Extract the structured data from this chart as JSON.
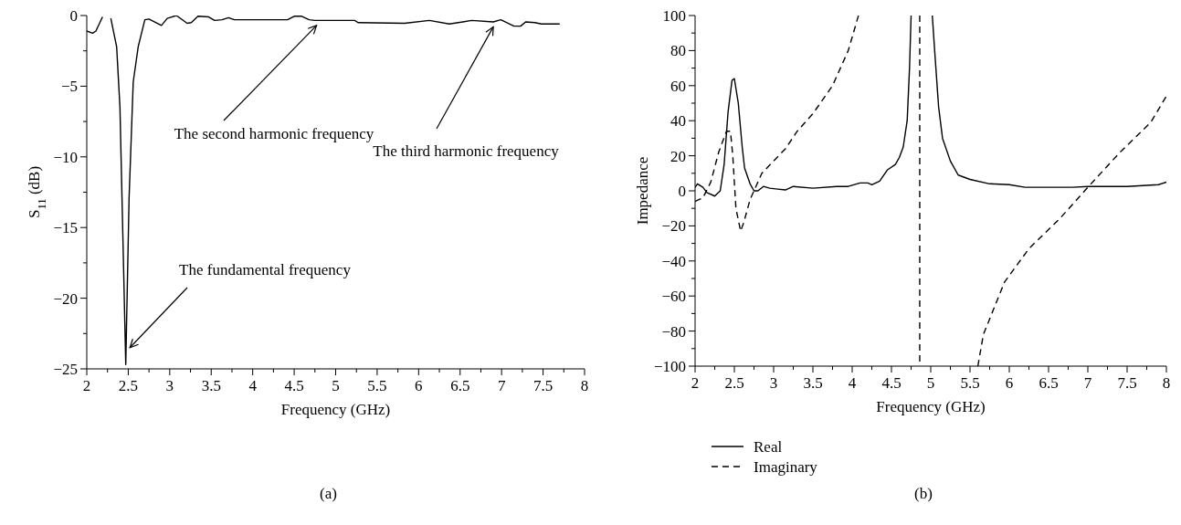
{
  "chart_data": [
    {
      "type": "line",
      "xlabel": "Frequency (GHz)",
      "ylabel": "S$_{11}$ (dB)",
      "xlim": [
        2,
        8
      ],
      "ylim": [
        -25,
        0
      ],
      "xticks": [
        2,
        {
          "value": 2.25,
          "label": null
        },
        2.5,
        {
          "value": 2.75,
          "label": null
        },
        3,
        {
          "value": 3.25,
          "label": null
        },
        3.5,
        {
          "value": 3.75,
          "label": null
        },
        4,
        {
          "value": 4.25,
          "label": null
        },
        4.5,
        {
          "value": 4.75,
          "label": null
        },
        5,
        {
          "value": 5.25,
          "label": null
        },
        5.5,
        {
          "value": 5.75,
          "label": null
        },
        6,
        {
          "value": 6.25,
          "label": null
        },
        6.5,
        {
          "value": 6.75,
          "label": null
        },
        7,
        {
          "value": 7.25,
          "label": null
        },
        7.5,
        {
          "value": 7.75,
          "label": null
        },
        8
      ],
      "yticks": [
        -25,
        {
          "value": -22.5,
          "label": null
        },
        -20,
        {
          "value": -17.5,
          "label": null
        },
        -15,
        {
          "value": -12.5,
          "label": null
        },
        -10,
        {
          "value": -7.5,
          "label": null
        },
        -5,
        {
          "value": -2.5,
          "label": null
        },
        0
      ],
      "grid": false,
      "series": [
        {
          "color": "#000000",
          "line_style": "solid",
          "x": [
            2.0,
            2.07,
            2.11,
            2.19,
            2.24,
            2.29,
            2.36,
            2.4,
            2.47,
            2.51,
            2.56,
            2.62,
            2.7,
            2.75,
            2.9,
            2.97,
            3.08,
            3.21,
            3.26,
            3.34,
            3.47,
            3.54,
            3.63,
            3.71,
            3.78,
            4.42,
            4.5,
            4.59,
            4.68,
            4.75,
            5.23,
            5.27,
            5.83,
            6.13,
            6.37,
            6.64,
            6.9,
            6.99,
            7.15,
            7.23,
            7.29,
            7.4,
            7.48,
            7.7
          ],
          "values": [
            -1.1,
            -1.25,
            -1.1,
            -0.1,
            null,
            -0.2,
            -2.2,
            -6.5,
            -24.7,
            -12.9,
            -4.7,
            -2.2,
            -0.3,
            -0.25,
            -0.7,
            -0.2,
            0,
            -0.55,
            -0.5,
            -0.05,
            -0.1,
            -0.35,
            -0.3,
            -0.15,
            -0.3,
            -0.3,
            -0.05,
            -0.05,
            -0.3,
            -0.35,
            -0.35,
            -0.5,
            -0.55,
            -0.35,
            -0.6,
            -0.35,
            -0.45,
            -0.3,
            -0.75,
            -0.75,
            -0.45,
            -0.5,
            -0.6,
            -0.6
          ]
        }
      ],
      "annotations": [
        {
          "text": "The fundamental frequency",
          "x": 2.52,
          "y": -23.5
        },
        {
          "text": "The second harmonic frequency",
          "x": 4.77,
          "y": -0.7
        },
        {
          "text": "The third harmonic frequency",
          "x": 6.9,
          "y": -0.8
        },
        "(a)"
      ]
    },
    {
      "type": "line",
      "xlabel": "Frequency (GHz)",
      "ylabel": "Impedance",
      "xlim": [
        2,
        8
      ],
      "ylim": [
        -100,
        100
      ],
      "xticks": [
        2,
        {
          "value": 2.25,
          "label": null
        },
        2.5,
        {
          "value": 2.75,
          "label": null
        },
        3,
        {
          "value": 3.25,
          "label": null
        },
        3.5,
        {
          "value": 3.75,
          "label": null
        },
        4,
        {
          "value": 4.25,
          "label": null
        },
        4.5,
        {
          "value": 4.75,
          "label": null
        },
        5,
        {
          "value": 5.25,
          "label": null
        },
        5.5,
        {
          "value": 5.75,
          "label": null
        },
        6,
        {
          "value": 6.25,
          "label": null
        },
        6.5,
        {
          "value": 6.75,
          "label": null
        },
        7,
        {
          "value": 7.25,
          "label": null
        },
        7.5,
        {
          "value": 7.75,
          "label": null
        },
        8
      ],
      "yticks": [
        -100,
        {
          "value": -90,
          "label": null
        },
        -80,
        {
          "value": -70,
          "label": null
        },
        -60,
        {
          "value": -50,
          "label": null
        },
        -40,
        {
          "value": -30,
          "label": null
        },
        -20,
        {
          "value": -10,
          "label": null
        },
        0,
        {
          "value": 10,
          "label": null
        },
        20,
        {
          "value": 30,
          "label": null
        },
        40,
        {
          "value": 50,
          "label": null
        },
        60,
        {
          "value": 70,
          "label": null
        },
        80,
        {
          "value": 90,
          "label": null
        },
        100
      ],
      "grid": false,
      "legend": "bottom",
      "series": [
        {
          "name": "Real",
          "color": "#000000",
          "line_style": "solid",
          "x": [
            2.0,
            2.03,
            2.1,
            2.15,
            2.25,
            2.32,
            2.37,
            2.42,
            2.47,
            2.5,
            2.55,
            2.6,
            2.63,
            2.7,
            2.75,
            2.8,
            2.87,
            2.95,
            3.05,
            3.15,
            3.25,
            3.5,
            3.8,
            3.95,
            4.1,
            4.2,
            4.25,
            4.35,
            4.45,
            4.55,
            4.6,
            4.65,
            4.7,
            4.73,
            4.75,
            4.9,
            5.02,
            5.05,
            5.1,
            5.15,
            5.25,
            5.35,
            5.5,
            5.75,
            6.0,
            6.2,
            6.8,
            7.0,
            7.5,
            7.9,
            8.0
          ],
          "values": [
            2,
            4,
            2,
            -1,
            -3,
            0,
            15,
            45,
            63,
            64,
            50,
            25,
            13,
            4,
            0,
            0,
            2.5,
            1.5,
            1,
            0.5,
            2.5,
            1.5,
            2.5,
            2.5,
            4.5,
            4.5,
            3.5,
            5.5,
            12,
            15,
            19,
            25,
            40,
            70,
            100,
            null,
            100,
            80,
            48,
            30,
            17,
            9,
            6.5,
            4,
            3.5,
            2,
            2,
            2.5,
            2.5,
            3.5,
            5
          ]
        },
        {
          "name": "Imaginary",
          "color": "#000000",
          "line_style": "dashed",
          "x": [
            2.0,
            2.1,
            2.2,
            2.3,
            2.4,
            2.45,
            2.48,
            2.52,
            2.58,
            2.62,
            2.7,
            2.75,
            2.85,
            3.0,
            3.15,
            3.3,
            3.5,
            3.75,
            3.95,
            4.08,
            4.5,
            4.86,
            4.86,
            5.2,
            5.6,
            5.67,
            5.94,
            6.25,
            6.64,
            7.0,
            7.41,
            7.8,
            8.0
          ],
          "values": [
            -6,
            -4,
            5,
            22,
            34,
            34,
            20,
            -10,
            -23,
            -18,
            -5,
            0,
            10,
            17,
            24,
            34,
            44,
            60,
            80,
            100,
            null,
            100,
            -100,
            null,
            -100,
            -82,
            -52,
            -33,
            -16,
            2,
            22,
            39,
            54
          ]
        }
      ],
      "annotations": [
        "(b)"
      ]
    }
  ]
}
